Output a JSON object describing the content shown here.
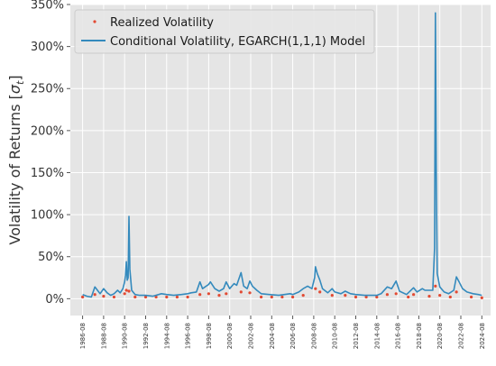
{
  "chart_data": {
    "type": "line",
    "title": "",
    "xlabel": "",
    "ylabel": "Volatility of Returns [σt]",
    "ylabel_main": "Volatility of Returns [",
    "ylabel_symbol": "σ",
    "ylabel_sub": "t",
    "ylabel_close": "]",
    "xlim": [
      "1985-06",
      "2025-06"
    ],
    "ylim": [
      -0.2,
      3.5
    ],
    "grid": true,
    "legend_placement": "top-left",
    "x_ticks": [
      "1986-08",
      "1988-08",
      "1990-08",
      "1992-08",
      "1994-08",
      "1996-08",
      "1998-08",
      "2000-08",
      "2002-08",
      "2004-08",
      "2006-08",
      "2008-08",
      "2010-08",
      "2012-08",
      "2014-08",
      "2016-08",
      "2018-08",
      "2020-08",
      "2022-08",
      "2024-08"
    ],
    "y_ticks": [
      {
        "value": 0,
        "label": "0%"
      },
      {
        "value": 0.5,
        "label": "50%"
      },
      {
        "value": 1.0,
        "label": "100%"
      },
      {
        "value": 1.5,
        "label": "150%"
      },
      {
        "value": 2.0,
        "label": "200%"
      },
      {
        "value": 2.5,
        "label": "250%"
      },
      {
        "value": 3.0,
        "label": "300%"
      },
      {
        "value": 3.5,
        "label": "350%"
      }
    ],
    "series": [
      {
        "name": "Conditional Volatility, EGARCH(1,1,1) Model",
        "style": "line",
        "color": "#348abd",
        "points": [
          [
            "1986-08",
            0.05
          ],
          [
            "1987-01",
            0.03
          ],
          [
            "1987-06",
            0.02
          ],
          [
            "1987-10",
            0.14
          ],
          [
            "1988-01",
            0.1
          ],
          [
            "1988-04",
            0.06
          ],
          [
            "1988-08",
            0.12
          ],
          [
            "1988-12",
            0.07
          ],
          [
            "1989-04",
            0.04
          ],
          [
            "1989-08",
            0.06
          ],
          [
            "1989-12",
            0.1
          ],
          [
            "1990-03",
            0.07
          ],
          [
            "1990-06",
            0.12
          ],
          [
            "1990-08",
            0.2
          ],
          [
            "1990-09",
            0.28
          ],
          [
            "1990-10",
            0.44
          ],
          [
            "1990-11",
            0.22
          ],
          [
            "1990-12",
            0.25
          ],
          [
            "1991-01",
            0.98
          ],
          [
            "1991-02",
            0.35
          ],
          [
            "1991-04",
            0.1
          ],
          [
            "1991-08",
            0.05
          ],
          [
            "1992-01",
            0.04
          ],
          [
            "1992-08",
            0.04
          ],
          [
            "1993-04",
            0.03
          ],
          [
            "1994-02",
            0.06
          ],
          [
            "1994-08",
            0.05
          ],
          [
            "1995-04",
            0.04
          ],
          [
            "1996-01",
            0.05
          ],
          [
            "1996-08",
            0.06
          ],
          [
            "1996-12",
            0.07
          ],
          [
            "1997-06",
            0.08
          ],
          [
            "1997-10",
            0.2
          ],
          [
            "1998-01",
            0.12
          ],
          [
            "1998-08",
            0.17
          ],
          [
            "1998-10",
            0.2
          ],
          [
            "1999-03",
            0.12
          ],
          [
            "1999-08",
            0.09
          ],
          [
            "2000-01",
            0.12
          ],
          [
            "2000-04",
            0.2
          ],
          [
            "2000-08",
            0.12
          ],
          [
            "2001-01",
            0.18
          ],
          [
            "2001-04",
            0.16
          ],
          [
            "2001-09",
            0.31
          ],
          [
            "2001-12",
            0.15
          ],
          [
            "2002-04",
            0.12
          ],
          [
            "2002-07",
            0.21
          ],
          [
            "2002-10",
            0.15
          ],
          [
            "2003-03",
            0.1
          ],
          [
            "2003-08",
            0.06
          ],
          [
            "2004-05",
            0.05
          ],
          [
            "2005-04",
            0.04
          ],
          [
            "2006-05",
            0.06
          ],
          [
            "2006-08",
            0.05
          ],
          [
            "2007-03",
            0.08
          ],
          [
            "2007-08",
            0.12
          ],
          [
            "2008-01",
            0.15
          ],
          [
            "2008-06",
            0.12
          ],
          [
            "2008-09",
            0.25
          ],
          [
            "2008-10",
            0.38
          ],
          [
            "2008-12",
            0.3
          ],
          [
            "2009-03",
            0.22
          ],
          [
            "2009-06",
            0.12
          ],
          [
            "2009-12",
            0.07
          ],
          [
            "2010-05",
            0.12
          ],
          [
            "2010-08",
            0.08
          ],
          [
            "2011-03",
            0.06
          ],
          [
            "2011-08",
            0.09
          ],
          [
            "2012-02",
            0.06
          ],
          [
            "2012-08",
            0.05
          ],
          [
            "2013-06",
            0.04
          ],
          [
            "2014-08",
            0.04
          ],
          [
            "2015-01",
            0.06
          ],
          [
            "2015-08",
            0.14
          ],
          [
            "2016-01",
            0.12
          ],
          [
            "2016-06",
            0.21
          ],
          [
            "2016-10",
            0.09
          ],
          [
            "2017-06",
            0.05
          ],
          [
            "2018-02",
            0.13
          ],
          [
            "2018-06",
            0.08
          ],
          [
            "2018-12",
            0.12
          ],
          [
            "2019-03",
            0.1
          ],
          [
            "2019-08",
            0.1
          ],
          [
            "2019-12",
            0.1
          ],
          [
            "2020-02",
            0.6
          ],
          [
            "2020-03",
            3.4
          ],
          [
            "2020-04",
            1.45
          ],
          [
            "2020-05",
            0.3
          ],
          [
            "2020-08",
            0.14
          ],
          [
            "2021-01",
            0.08
          ],
          [
            "2021-06",
            0.06
          ],
          [
            "2021-12",
            0.1
          ],
          [
            "2022-03",
            0.26
          ],
          [
            "2022-06",
            0.2
          ],
          [
            "2022-10",
            0.12
          ],
          [
            "2023-03",
            0.08
          ],
          [
            "2023-10",
            0.06
          ],
          [
            "2024-04",
            0.05
          ],
          [
            "2024-08",
            0.04
          ]
        ]
      },
      {
        "name": "Realized Volatility",
        "style": "points",
        "color": "#e24a33",
        "points": [
          [
            "1986-08",
            0.02
          ],
          [
            "1987-10",
            0.05
          ],
          [
            "1988-08",
            0.03
          ],
          [
            "1989-08",
            0.02
          ],
          [
            "1990-08",
            0.06
          ],
          [
            "1990-10",
            0.1
          ],
          [
            "1991-01",
            0.09
          ],
          [
            "1991-08",
            0.02
          ],
          [
            "1992-08",
            0.02
          ],
          [
            "1993-08",
            0.02
          ],
          [
            "1994-08",
            0.02
          ],
          [
            "1995-08",
            0.02
          ],
          [
            "1996-08",
            0.02
          ],
          [
            "1997-10",
            0.05
          ],
          [
            "1998-08",
            0.06
          ],
          [
            "1999-08",
            0.04
          ],
          [
            "2000-04",
            0.06
          ],
          [
            "2001-09",
            0.08
          ],
          [
            "2002-07",
            0.07
          ],
          [
            "2003-08",
            0.02
          ],
          [
            "2004-08",
            0.02
          ],
          [
            "2005-08",
            0.02
          ],
          [
            "2006-08",
            0.02
          ],
          [
            "2007-08",
            0.04
          ],
          [
            "2008-10",
            0.12
          ],
          [
            "2009-03",
            0.08
          ],
          [
            "2010-05",
            0.04
          ],
          [
            "2011-08",
            0.04
          ],
          [
            "2012-08",
            0.02
          ],
          [
            "2013-08",
            0.02
          ],
          [
            "2014-08",
            0.02
          ],
          [
            "2015-08",
            0.05
          ],
          [
            "2016-06",
            0.06
          ],
          [
            "2017-08",
            0.02
          ],
          [
            "2018-02",
            0.05
          ],
          [
            "2019-08",
            0.03
          ],
          [
            "2020-03",
            0.15
          ],
          [
            "2020-08",
            0.04
          ],
          [
            "2021-08",
            0.02
          ],
          [
            "2022-03",
            0.08
          ],
          [
            "2023-08",
            0.02
          ],
          [
            "2024-08",
            0.01
          ]
        ]
      }
    ]
  }
}
